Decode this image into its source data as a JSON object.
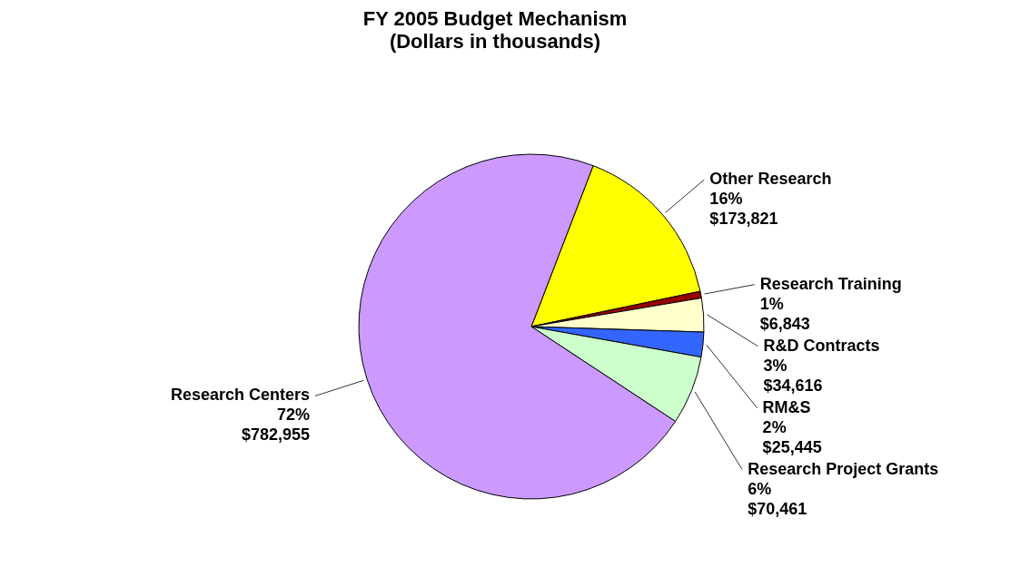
{
  "chart_data": {
    "type": "pie",
    "title": "FY 2005 Budget Mechanism",
    "subtitle": "(Dollars in thousands)",
    "categories": [
      "Other Research",
      "Research Training",
      "R&D Contracts",
      "RM&S",
      "Research Project Grants",
      "Research Centers"
    ],
    "values": [
      173821,
      6843,
      34616,
      25445,
      70461,
      782955
    ],
    "value_labels": [
      "16%\n$173,821",
      "1%\n$6,843",
      "3%\n$34,616",
      "2%\n$25,445",
      "6%\n$70,461",
      "72%\n$782,955"
    ],
    "colors": [
      "#ffff00",
      "#990000",
      "#ffffcc",
      "#3366ff",
      "#ccffcc",
      "#cc99ff"
    ],
    "legend": false
  }
}
